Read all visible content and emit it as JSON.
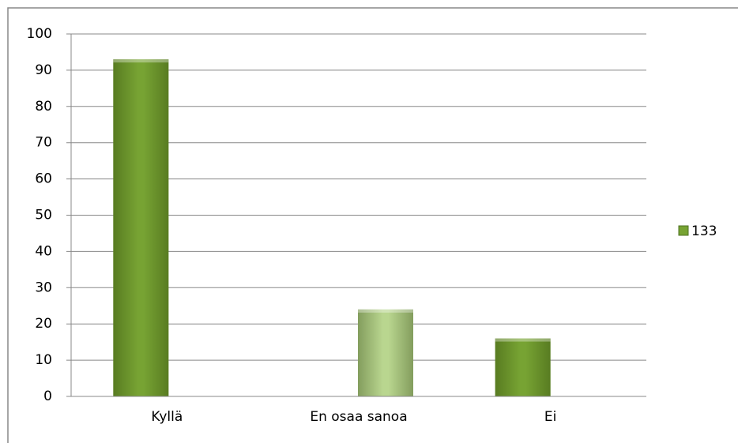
{
  "chart_data": {
    "type": "bar",
    "categories": [
      "Kyllä",
      "En osaa sanoa",
      "Ei"
    ],
    "series": [
      {
        "name": "133",
        "color": "#77a333",
        "values": [
          93,
          24,
          16
        ]
      }
    ],
    "bar_colors": [
      "#77a333",
      "#b9d68f",
      "#77a333"
    ],
    "ylim": [
      0,
      100
    ],
    "yticks": [
      0,
      10,
      20,
      30,
      40,
      50,
      60,
      70,
      80,
      90,
      100
    ],
    "grid": true,
    "legend": "right"
  }
}
